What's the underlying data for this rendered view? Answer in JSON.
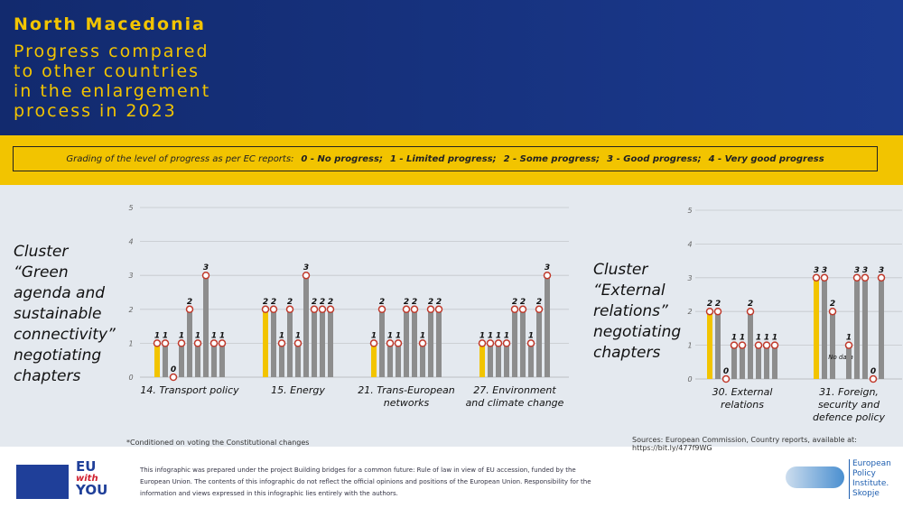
{
  "header": {
    "title": "North Macedonia",
    "subtitle_lines": [
      "Progress compared",
      "to other countries",
      "in the enlargement",
      "process in 2023"
    ]
  },
  "grading": {
    "intro": "Grading of the level of progress as per EC reports:",
    "items": [
      "0 - No progress;",
      "1 - Limited progress;",
      "2 - Some progress;",
      "3 - Good progress;",
      "4 - Very good progress"
    ]
  },
  "chart_data": [
    {
      "type": "bar",
      "title_lines": [
        "Cluster",
        "“Green",
        "agenda and",
        "sustainable",
        "connectivity”",
        "negotiating",
        "chapters"
      ],
      "categories": [
        "14. Transport policy",
        "15. Energy",
        "21. Trans-European networks",
        "27. Environment and climate change"
      ],
      "series": [
        {
          "color": "#f2c400",
          "values": [
            1,
            2,
            1,
            1
          ]
        },
        {
          "color": "#8d8d8d",
          "values": [
            1,
            2,
            2,
            1
          ]
        },
        {
          "color": "#8d8d8d",
          "values": [
            0,
            1,
            1,
            1
          ]
        },
        {
          "color": "#8d8d8d",
          "values": [
            1,
            2,
            1,
            1
          ]
        },
        {
          "color": "#8d8d8d",
          "values": [
            2,
            1,
            2,
            2
          ]
        },
        {
          "color": "#8d8d8d",
          "values": [
            1,
            3,
            2,
            2
          ]
        },
        {
          "color": "#8d8d8d",
          "values": [
            3,
            2,
            1,
            1
          ]
        },
        {
          "color": "#8d8d8d",
          "values": [
            1,
            2,
            2,
            2
          ]
        },
        {
          "color": "#8d8d8d",
          "values": [
            1,
            2,
            2,
            3
          ]
        }
      ],
      "ylim": [
        0,
        5
      ],
      "yticks": [
        0,
        1,
        2,
        3,
        4,
        5
      ],
      "grid": true
    },
    {
      "type": "bar",
      "title_lines": [
        "Cluster",
        "“External",
        "relations”",
        "negotiating",
        "chapters"
      ],
      "categories": [
        "30. External relations",
        "31. Foreign, security and defence policy"
      ],
      "series": [
        {
          "color": "#f2c400",
          "values": [
            2,
            3
          ]
        },
        {
          "color": "#8d8d8d",
          "values": [
            2,
            3
          ]
        },
        {
          "color": "#8d8d8d",
          "values": [
            0,
            2
          ]
        },
        {
          "color": "#8d8d8d",
          "values": [
            1,
            null
          ],
          "value_labels": [
            "1",
            "No data"
          ]
        },
        {
          "color": "#8d8d8d",
          "values": [
            1,
            1
          ]
        },
        {
          "color": "#8d8d8d",
          "values": [
            2,
            3
          ]
        },
        {
          "color": "#8d8d8d",
          "values": [
            1,
            3
          ]
        },
        {
          "color": "#8d8d8d",
          "values": [
            1,
            0
          ]
        },
        {
          "color": "#8d8d8d",
          "values": [
            1,
            3
          ]
        }
      ],
      "ylim": [
        0,
        5
      ],
      "yticks": [
        0,
        1,
        2,
        3,
        4,
        5
      ],
      "grid": true
    }
  ],
  "footnote": "*Conditioned on voting the Constitutional changes",
  "sources": "Sources: European Commission, Country reports, available at: https://bit.ly/477f9WG",
  "disclaimer_lines": [
    "This infographic was prepared under the project Building bridges for a common future: Rule of law in view of EU accession, funded by the",
    "European Union. The contents of this infographic do not reflect the official opinions and positions of the European Union. Responsibility for the",
    "information and views expressed in this infographic lies entirely with the authors."
  ],
  "logos": {
    "eu_with_you": [
      "EU",
      "with",
      "YOU"
    ],
    "epi": [
      "European",
      "Policy",
      "Institute.",
      "Skopje"
    ]
  }
}
